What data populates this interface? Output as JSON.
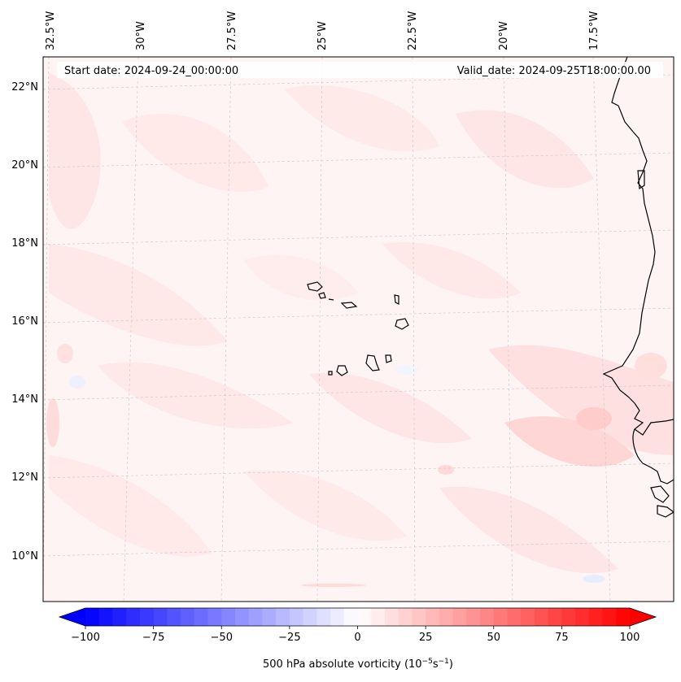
{
  "map": {
    "start_date_label": "Start date: 2024-09-24_00:00:00",
    "valid_date_label": "Valid_date: 2024-09-25T18:00:00.00",
    "lon_labels": [
      "32.5°W",
      "30°W",
      "27.5°W",
      "25°W",
      "22.5°W",
      "20°W",
      "17.5°W"
    ],
    "lat_labels": [
      "22°N",
      "20°N",
      "18°N",
      "16°N",
      "14°N",
      "12°N",
      "10°N"
    ],
    "field": "500 hPa absolute vorticity"
  },
  "colorbar": {
    "label_main": "500 hPa absolute vorticity (10",
    "label_exp1": "−5",
    "label_mid": "s",
    "label_exp2": "−1",
    "label_end": ")",
    "tick_labels": [
      "−100",
      "−75",
      "−50",
      "−25",
      "0",
      "25",
      "50",
      "75",
      "100"
    ],
    "min": -100,
    "max": 100,
    "low_color": "#0000ff",
    "high_color": "#ff0000"
  }
}
